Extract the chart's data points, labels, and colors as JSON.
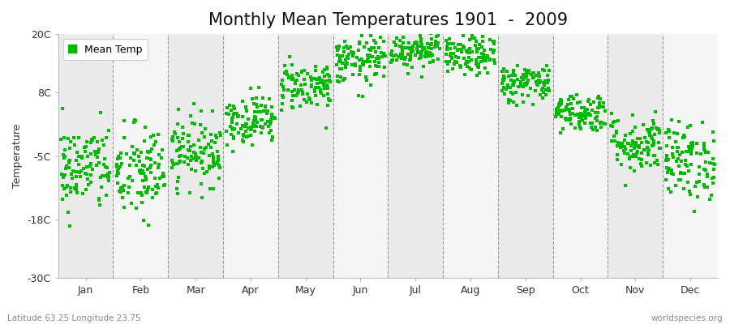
{
  "title": "Monthly Mean Temperatures 1901  -  2009",
  "ylabel": "Temperature",
  "bottom_left_label": "Latitude 63.25 Longitude 23.75",
  "bottom_right_label": "worldspecies.org",
  "legend_label": "Mean Temp",
  "dot_color": "#00BB00",
  "bg_color": "#F0F0F0",
  "fig_bg_color": "#FFFFFF",
  "ylim": [
    -30,
    20
  ],
  "yticks": [
    -30,
    -18,
    -5,
    8,
    20
  ],
  "ytick_labels": [
    "-30C",
    "-18C",
    "-5C",
    "8C",
    "20C"
  ],
  "months": [
    "Jan",
    "Feb",
    "Mar",
    "Apr",
    "May",
    "Jun",
    "Jul",
    "Aug",
    "Sep",
    "Oct",
    "Nov",
    "Dec"
  ],
  "monthly_means": [
    -7.5,
    -8.5,
    -4.0,
    2.5,
    9.5,
    14.5,
    17.0,
    15.5,
    10.0,
    4.0,
    -2.5,
    -6.0
  ],
  "monthly_stds": [
    4.5,
    5.0,
    3.5,
    2.5,
    2.5,
    2.5,
    2.0,
    2.0,
    2.0,
    2.0,
    3.0,
    4.0
  ],
  "n_years": 109,
  "title_fontsize": 15,
  "label_fontsize": 9,
  "tick_fontsize": 9
}
